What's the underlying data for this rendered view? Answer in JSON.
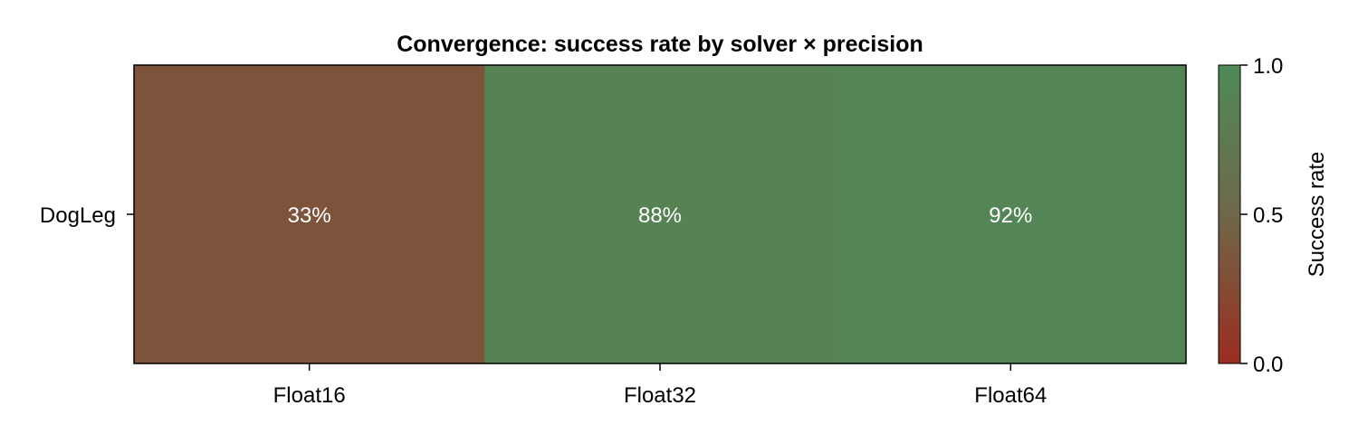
{
  "chart_data": {
    "type": "heatmap",
    "title": "Convergence: success rate by solver × precision",
    "x_categories": [
      "Float16",
      "Float32",
      "Float64"
    ],
    "y_categories": [
      "DogLeg"
    ],
    "values": [
      [
        0.33,
        0.88,
        0.92
      ]
    ],
    "cell_labels": [
      [
        "33%",
        "88%",
        "92%"
      ]
    ],
    "colorbar": {
      "label": "Success rate",
      "range": [
        0.0,
        1.0
      ],
      "ticks": [
        "0.0",
        "0.5",
        "1.0"
      ],
      "colors": {
        "low": "#9b2d20",
        "mid": "#6e6849",
        "high": "#4f8a58"
      }
    },
    "grid": false
  }
}
